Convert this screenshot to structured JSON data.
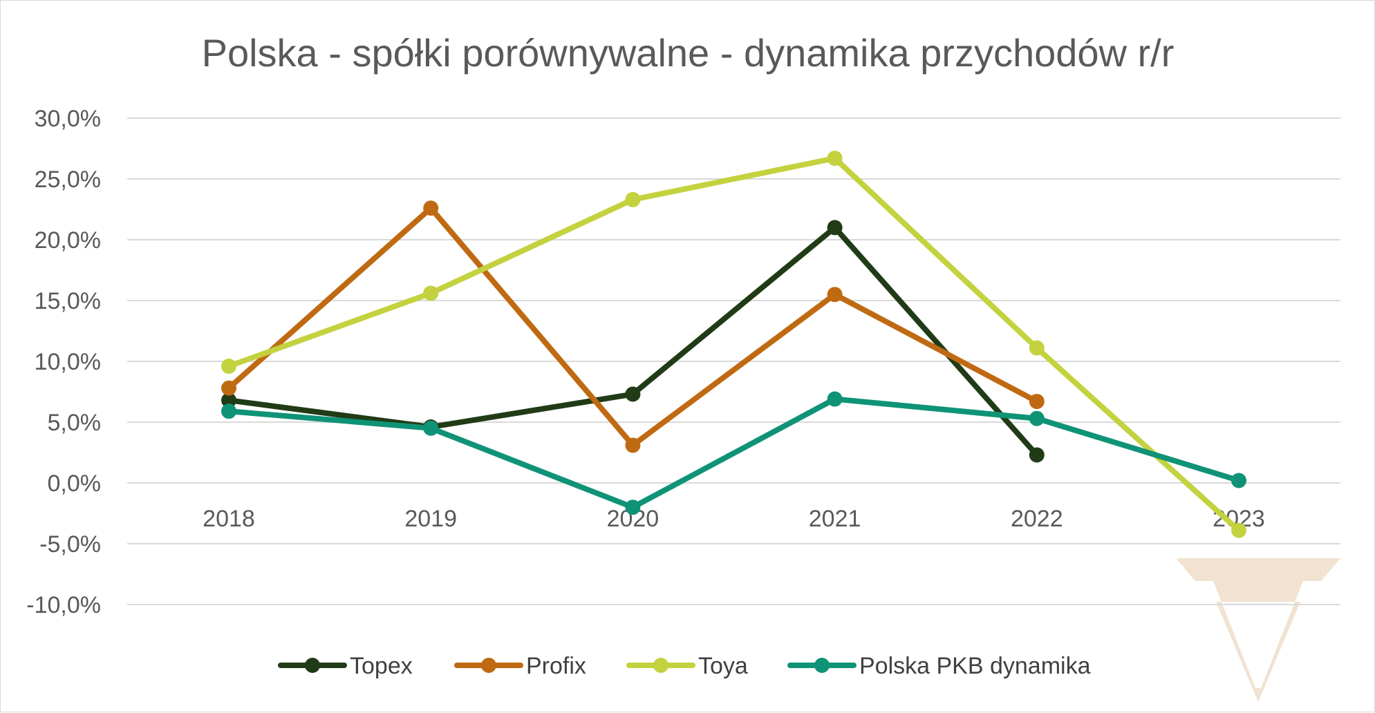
{
  "chart_data": {
    "type": "line",
    "title": "Polska - spółki porównywalne - dynamika przychodów r/r",
    "categories": [
      "2018",
      "2019",
      "2020",
      "2021",
      "2022",
      "2023"
    ],
    "y_tick_labels": [
      "30,0%",
      "25,0%",
      "20,0%",
      "15,0%",
      "10,0%",
      "5,0%",
      "0,0%",
      "-5,0%",
      "-10,0%"
    ],
    "ylim": [
      -10,
      30
    ],
    "y_step": 5,
    "y_unit": "percent",
    "grid": true,
    "legend_position": "bottom",
    "series": [
      {
        "name": "Topex",
        "color": "#203b16",
        "values": [
          6.8,
          4.6,
          7.3,
          21.0,
          2.3,
          null
        ]
      },
      {
        "name": "Profix",
        "color": "#bf6a12",
        "values": [
          7.8,
          22.6,
          3.1,
          15.5,
          6.7,
          null
        ]
      },
      {
        "name": "Toya",
        "color": "#c3d23e",
        "values": [
          9.6,
          15.6,
          23.3,
          26.7,
          11.1,
          -3.9
        ]
      },
      {
        "name": "Polska PKB dynamika",
        "color": "#0f9376",
        "values": [
          5.9,
          4.5,
          -2.0,
          6.9,
          5.3,
          0.2
        ]
      }
    ],
    "watermark_color": "#f1e2d2"
  }
}
